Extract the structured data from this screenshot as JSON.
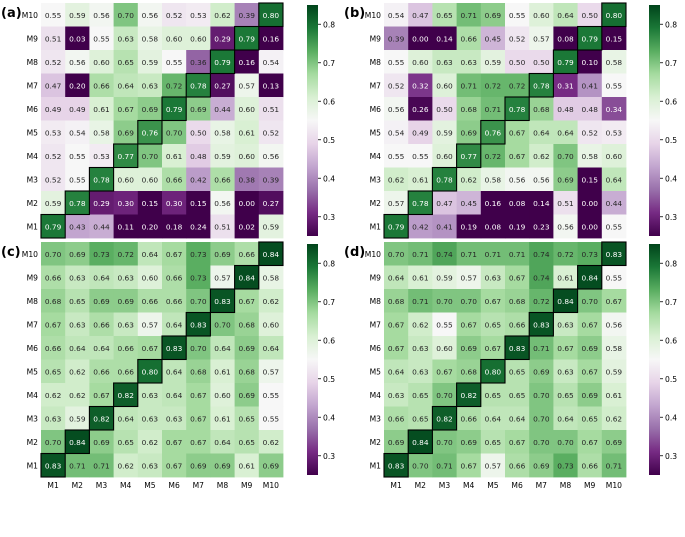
{
  "figure": {
    "models": [
      "M1",
      "M2",
      "M3",
      "M4",
      "M5",
      "M6",
      "M7",
      "M8",
      "M9",
      "M10"
    ],
    "colorbar_ticks": [
      0.3,
      0.4,
      0.5,
      0.6,
      0.7,
      0.8
    ],
    "colorbar_range": [
      0.25,
      0.85
    ]
  },
  "chart_data": [
    {
      "panel_label": "(a)",
      "type": "heatmap",
      "colormap": "PRGn",
      "x_categories": [
        "M1",
        "M2",
        "M3",
        "M4",
        "M5",
        "M6",
        "M7",
        "M8",
        "M9",
        "M10"
      ],
      "y_categories": [
        "M10",
        "M9",
        "M8",
        "M7",
        "M6",
        "M5",
        "M4",
        "M3",
        "M2",
        "M1"
      ],
      "values": [
        [
          0.55,
          0.59,
          0.56,
          0.7,
          0.56,
          0.52,
          0.53,
          0.62,
          0.39,
          0.8
        ],
        [
          0.51,
          0.03,
          0.55,
          0.63,
          0.58,
          0.6,
          0.6,
          0.29,
          0.79,
          0.16
        ],
        [
          0.52,
          0.56,
          0.6,
          0.65,
          0.59,
          0.55,
          0.36,
          0.79,
          0.16,
          0.54
        ],
        [
          0.47,
          0.2,
          0.66,
          0.64,
          0.63,
          0.72,
          0.78,
          0.27,
          0.57,
          0.13
        ],
        [
          0.49,
          0.49,
          0.61,
          0.67,
          0.69,
          0.79,
          0.69,
          0.44,
          0.6,
          0.51
        ],
        [
          0.53,
          0.54,
          0.58,
          0.69,
          0.76,
          0.7,
          0.5,
          0.58,
          0.61,
          0.52
        ],
        [
          0.52,
          0.55,
          0.53,
          0.77,
          0.7,
          0.61,
          0.48,
          0.59,
          0.6,
          0.56
        ],
        [
          0.52,
          0.55,
          0.78,
          0.6,
          0.6,
          0.66,
          0.42,
          0.66,
          0.38,
          0.39
        ],
        [
          0.59,
          0.78,
          0.29,
          0.3,
          0.15,
          0.3,
          0.15,
          0.56,
          0.0,
          0.27
        ],
        [
          0.79,
          0.43,
          0.44,
          0.11,
          0.2,
          0.18,
          0.24,
          0.51,
          0.02,
          0.59
        ]
      ]
    },
    {
      "panel_label": "(b)",
      "type": "heatmap",
      "colormap": "PRGn",
      "x_categories": [
        "M1",
        "M2",
        "M3",
        "M4",
        "M5",
        "M6",
        "M7",
        "M8",
        "M9",
        "M10"
      ],
      "y_categories": [
        "M10",
        "M9",
        "M8",
        "M7",
        "M6",
        "M5",
        "M4",
        "M3",
        "M2",
        "M1"
      ],
      "values": [
        [
          0.54,
          0.47,
          0.65,
          0.71,
          0.69,
          0.55,
          0.6,
          0.64,
          0.5,
          0.8
        ],
        [
          0.39,
          0.0,
          0.14,
          0.66,
          0.45,
          0.52,
          0.57,
          0.08,
          0.79,
          0.15
        ],
        [
          0.55,
          0.6,
          0.63,
          0.63,
          0.59,
          0.5,
          0.5,
          0.79,
          0.1,
          0.58
        ],
        [
          0.52,
          0.32,
          0.6,
          0.71,
          0.72,
          0.72,
          0.78,
          0.31,
          0.41,
          0.55
        ],
        [
          0.56,
          0.26,
          0.5,
          0.68,
          0.71,
          0.78,
          0.68,
          0.48,
          0.48,
          0.34
        ],
        [
          0.54,
          0.49,
          0.59,
          0.69,
          0.76,
          0.67,
          0.64,
          0.64,
          0.52,
          0.53
        ],
        [
          0.55,
          0.55,
          0.6,
          0.77,
          0.72,
          0.67,
          0.62,
          0.7,
          0.58,
          0.6
        ],
        [
          0.62,
          0.61,
          0.78,
          0.62,
          0.58,
          0.56,
          0.56,
          0.69,
          0.15,
          0.64
        ],
        [
          0.57,
          0.78,
          0.47,
          0.45,
          0.16,
          0.08,
          0.14,
          0.51,
          0.0,
          0.44
        ],
        [
          0.79,
          0.42,
          0.41,
          0.19,
          0.08,
          0.19,
          0.23,
          0.56,
          0.0,
          0.55
        ]
      ]
    },
    {
      "panel_label": "(c)",
      "type": "heatmap",
      "colormap": "PRGn",
      "x_categories": [
        "M1",
        "M2",
        "M3",
        "M4",
        "M5",
        "M6",
        "M7",
        "M8",
        "M9",
        "M10"
      ],
      "y_categories": [
        "M10",
        "M9",
        "M8",
        "M7",
        "M6",
        "M5",
        "M4",
        "M3",
        "M2",
        "M1"
      ],
      "values": [
        [
          0.7,
          0.69,
          0.73,
          0.72,
          0.64,
          0.67,
          0.73,
          0.69,
          0.66,
          0.84
        ],
        [
          0.66,
          0.63,
          0.64,
          0.63,
          0.6,
          0.66,
          0.73,
          0.57,
          0.84,
          0.58
        ],
        [
          0.68,
          0.65,
          0.69,
          0.69,
          0.66,
          0.66,
          0.7,
          0.83,
          0.67,
          0.62
        ],
        [
          0.67,
          0.63,
          0.66,
          0.63,
          0.57,
          0.64,
          0.83,
          0.7,
          0.68,
          0.6
        ],
        [
          0.66,
          0.64,
          0.64,
          0.66,
          0.67,
          0.83,
          0.7,
          0.64,
          0.69,
          0.64
        ],
        [
          0.65,
          0.62,
          0.66,
          0.66,
          0.8,
          0.64,
          0.68,
          0.61,
          0.68,
          0.57
        ],
        [
          0.62,
          0.62,
          0.67,
          0.82,
          0.63,
          0.64,
          0.67,
          0.6,
          0.69,
          0.55
        ],
        [
          0.63,
          0.59,
          0.82,
          0.64,
          0.63,
          0.63,
          0.67,
          0.61,
          0.65,
          0.55
        ],
        [
          0.7,
          0.84,
          0.69,
          0.65,
          0.62,
          0.67,
          0.67,
          0.64,
          0.65,
          0.62
        ],
        [
          0.83,
          0.71,
          0.71,
          0.62,
          0.63,
          0.67,
          0.69,
          0.69,
          0.61,
          0.69
        ]
      ]
    },
    {
      "panel_label": "(d)",
      "type": "heatmap",
      "colormap": "PRGn",
      "x_categories": [
        "M1",
        "M2",
        "M3",
        "M4",
        "M5",
        "M6",
        "M7",
        "M8",
        "M9",
        "M10"
      ],
      "y_categories": [
        "M10",
        "M9",
        "M8",
        "M7",
        "M6",
        "M5",
        "M4",
        "M3",
        "M2",
        "M1"
      ],
      "values": [
        [
          0.7,
          0.71,
          0.74,
          0.71,
          0.71,
          0.71,
          0.74,
          0.72,
          0.73,
          0.83
        ],
        [
          0.64,
          0.61,
          0.59,
          0.57,
          0.63,
          0.67,
          0.74,
          0.61,
          0.84,
          0.55
        ],
        [
          0.68,
          0.71,
          0.7,
          0.7,
          0.67,
          0.68,
          0.72,
          0.84,
          0.7,
          0.67
        ],
        [
          0.67,
          0.62,
          0.55,
          0.67,
          0.65,
          0.66,
          0.83,
          0.63,
          0.67,
          0.56
        ],
        [
          0.67,
          0.63,
          0.6,
          0.69,
          0.67,
          0.83,
          0.71,
          0.67,
          0.69,
          0.58
        ],
        [
          0.64,
          0.63,
          0.67,
          0.68,
          0.8,
          0.65,
          0.69,
          0.63,
          0.67,
          0.59
        ],
        [
          0.63,
          0.65,
          0.7,
          0.82,
          0.65,
          0.65,
          0.7,
          0.65,
          0.69,
          0.61
        ],
        [
          0.66,
          0.65,
          0.82,
          0.66,
          0.64,
          0.64,
          0.7,
          0.64,
          0.65,
          0.62
        ],
        [
          0.69,
          0.84,
          0.7,
          0.69,
          0.65,
          0.67,
          0.7,
          0.7,
          0.67,
          0.69
        ],
        [
          0.83,
          0.7,
          0.71,
          0.67,
          0.57,
          0.66,
          0.69,
          0.73,
          0.66,
          0.71
        ]
      ]
    }
  ]
}
